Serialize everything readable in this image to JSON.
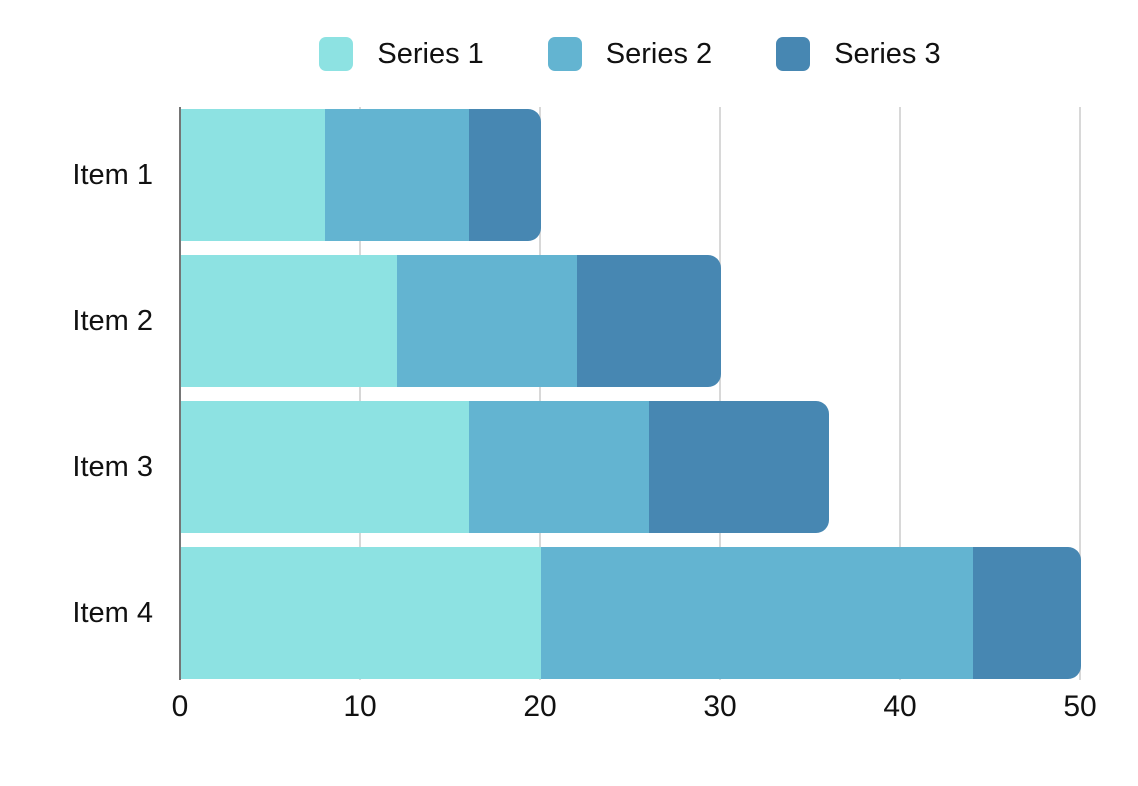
{
  "chart_data": {
    "type": "bar",
    "orientation": "horizontal",
    "stacked": true,
    "title": "",
    "xlabel": "",
    "ylabel": "",
    "categories": [
      "Item 1",
      "Item 2",
      "Item 3",
      "Item 4"
    ],
    "series": [
      {
        "name": "Series 1",
        "color": "#8DE2E2",
        "values": [
          8,
          12,
          16,
          20
        ]
      },
      {
        "name": "Series 2",
        "color": "#63B4D1",
        "values": [
          8,
          10,
          10,
          24
        ]
      },
      {
        "name": "Series 3",
        "color": "#4787B2",
        "values": [
          4,
          8,
          10,
          6
        ]
      }
    ],
    "stack_totals": [
      20,
      30,
      36,
      50
    ],
    "x_axis": {
      "min": 0,
      "max": 50,
      "ticks": [
        0,
        10,
        20,
        30,
        40,
        50
      ]
    },
    "legend_position": "top-center",
    "grid": "vertical-only",
    "colors": {
      "background": "#FFFFFF",
      "gridline": "#D8D8D8",
      "zero_axis_line": "#757575",
      "text": "#111111"
    }
  }
}
